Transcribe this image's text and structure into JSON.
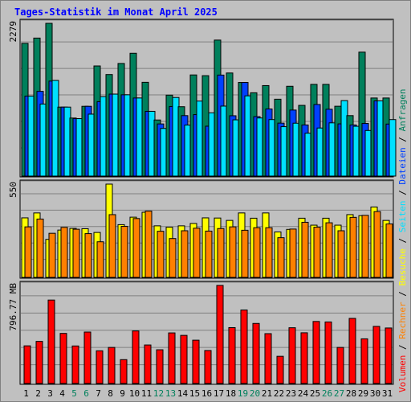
{
  "title": "Tages-Statistik im Monat April 2025",
  "colors": {
    "background": "#c0c0c0",
    "anfragen": "#00805c",
    "dateien": "#0040ff",
    "seiten": "#00e0ff",
    "besuche": "#ffff00",
    "rechner": "#ff8000",
    "volumen": "#ff0000",
    "title": "#0000ff",
    "weekend_day": "#00805c"
  },
  "chart_data": [
    {
      "type": "bar",
      "panel": "requests",
      "ymax_label": "2279",
      "ylim": [
        0,
        2279
      ],
      "categories": [
        "1",
        "2",
        "3",
        "4",
        "5",
        "6",
        "7",
        "8",
        "9",
        "10",
        "11",
        "12",
        "13",
        "14",
        "15",
        "16",
        "17",
        "18",
        "19",
        "20",
        "21",
        "22",
        "23",
        "24",
        "25",
        "26",
        "27",
        "28",
        "29",
        "30",
        "31"
      ],
      "series": [
        {
          "name": "Anfragen",
          "values": [
            1980,
            2059,
            2279,
            1029,
            866,
            1041,
            1643,
            1515,
            1680,
            1832,
            1399,
            837,
            1208,
            1035,
            1509,
            1498,
            2029,
            1538,
            1397,
            1243,
            1350,
            1147,
            1340,
            1055,
            1368,
            1368,
            1042,
            902,
            1849,
            1165,
            1165
          ]
        },
        {
          "name": "Dateien",
          "values": [
            1193,
            1264,
            1417,
            1029,
            857,
            1041,
            1111,
            1223,
            1213,
            1165,
            966,
            778,
            1038,
            902,
            917,
            744,
            1507,
            900,
            1397,
            887,
            1001,
            790,
            985,
            763,
            1068,
            997,
            779,
            763,
            785,
            1122,
            776
          ]
        },
        {
          "name": "Seiten",
          "values": [
            1193,
            1075,
            1427,
            1029,
            857,
            924,
            1185,
            1223,
            1213,
            1165,
            966,
            711,
            1173,
            761,
            1119,
            944,
            1044,
            839,
            1197,
            867,
            843,
            737,
            789,
            640,
            717,
            794,
            1126,
            743,
            680,
            1122,
            843
          ]
        }
      ],
      "weekend_days": [
        "5",
        "6",
        "12",
        "13",
        "19",
        "20",
        "26",
        "27"
      ]
    },
    {
      "type": "bar",
      "panel": "visits",
      "ymax_label": "550",
      "ylim": [
        0,
        550
      ],
      "categories": [
        "1",
        "2",
        "3",
        "4",
        "5",
        "6",
        "7",
        "8",
        "9",
        "10",
        "11",
        "12",
        "13",
        "14",
        "15",
        "16",
        "17",
        "18",
        "19",
        "20",
        "21",
        "22",
        "23",
        "24",
        "25",
        "26",
        "27",
        "28",
        "29",
        "30",
        "31"
      ],
      "series": [
        {
          "name": "Besuche",
          "values": [
            351,
            380,
            224,
            279,
            289,
            287,
            265,
            550,
            311,
            355,
            384,
            304,
            296,
            304,
            318,
            351,
            350,
            336,
            380,
            349,
            380,
            268,
            283,
            349,
            308,
            349,
            308,
            370,
            364,
            415,
            336
          ]
        },
        {
          "name": "Rechner",
          "values": [
            298,
            344,
            260,
            295,
            284,
            258,
            210,
            370,
            301,
            347,
            391,
            272,
            229,
            275,
            290,
            273,
            288,
            298,
            278,
            293,
            293,
            234,
            285,
            325,
            296,
            322,
            275,
            354,
            366,
            388,
            315
          ]
        }
      ]
    },
    {
      "type": "bar",
      "panel": "volume",
      "ymax_label": "796.77 MB",
      "ylim": [
        0,
        796.77
      ],
      "categories": [
        "1",
        "2",
        "3",
        "4",
        "5",
        "6",
        "7",
        "8",
        "9",
        "10",
        "11",
        "12",
        "13",
        "14",
        "15",
        "16",
        "17",
        "18",
        "19",
        "20",
        "21",
        "22",
        "23",
        "24",
        "25",
        "26",
        "27",
        "28",
        "29",
        "30",
        "31"
      ],
      "series": [
        {
          "name": "Volumen",
          "values": [
            306,
            342,
            678,
            407,
            305,
            418,
            266,
            293,
            194,
            427,
            313,
            274,
            411,
            391,
            352,
            268,
            796.77,
            454,
            597,
            488,
            405,
            221,
            453,
            412,
            504,
            500,
            293,
            529,
            363,
            464,
            451
          ]
        }
      ]
    }
  ],
  "x_labels": [
    "1",
    "2",
    "3",
    "4",
    "5",
    "6",
    "7",
    "8",
    "9",
    "10",
    "11",
    "12",
    "13",
    "14",
    "15",
    "16",
    "17",
    "18",
    "19",
    "20",
    "21",
    "22",
    "23",
    "24",
    "25",
    "26",
    "27",
    "28",
    "29",
    "30",
    "31"
  ],
  "side_legend": [
    {
      "label": "Volumen",
      "color": "#ff0000"
    },
    {
      "label": " / ",
      "color": "#000000"
    },
    {
      "label": "Rechner",
      "color": "#ff8000"
    },
    {
      "label": " / ",
      "color": "#000000"
    },
    {
      "label": "Besuche",
      "color": "#ffff00"
    },
    {
      "label": " / ",
      "color": "#000000"
    },
    {
      "label": "Seiten",
      "color": "#00e0ff"
    },
    {
      "label": " / ",
      "color": "#000000"
    },
    {
      "label": "Dateien",
      "color": "#0040ff"
    },
    {
      "label": " / ",
      "color": "#000000"
    },
    {
      "label": "Anfragen",
      "color": "#00805c"
    }
  ]
}
